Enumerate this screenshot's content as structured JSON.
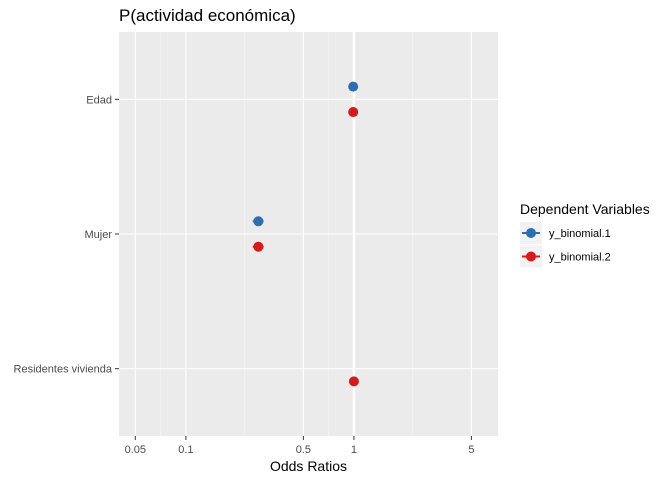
{
  "chart_data": {
    "type": "scatter",
    "title": "P(actividad económica)",
    "xlabel": "Odds Ratios",
    "ylabel": "",
    "x_scale": "log",
    "xlim": [
      0.04,
      7.2
    ],
    "x_ticks": [
      0.05,
      0.1,
      0.5,
      1,
      5
    ],
    "x_tick_labels": [
      "0.05",
      "0.1",
      "0.5",
      "1",
      "5"
    ],
    "reference_line": 1,
    "categories": [
      "Edad",
      "Mujer",
      "Residentes vivienda"
    ],
    "grid": true,
    "legend_position": "right",
    "legend_title": "Dependent Variables",
    "series": [
      {
        "name": "y_binomial.1",
        "color": "#2C6FB0",
        "values": [
          {
            "category": "Edad",
            "x": 0.99
          },
          {
            "category": "Mujer",
            "x": 0.27,
            "ci": [
              0.25,
              0.29
            ]
          }
        ]
      },
      {
        "name": "y_binomial.2",
        "color": "#D7191C",
        "values": [
          {
            "category": "Edad",
            "x": 0.99
          },
          {
            "category": "Mujer",
            "x": 0.27,
            "ci": [
              0.25,
              0.29
            ]
          },
          {
            "category": "Residentes vivienda",
            "x": 1.0
          }
        ]
      }
    ]
  }
}
